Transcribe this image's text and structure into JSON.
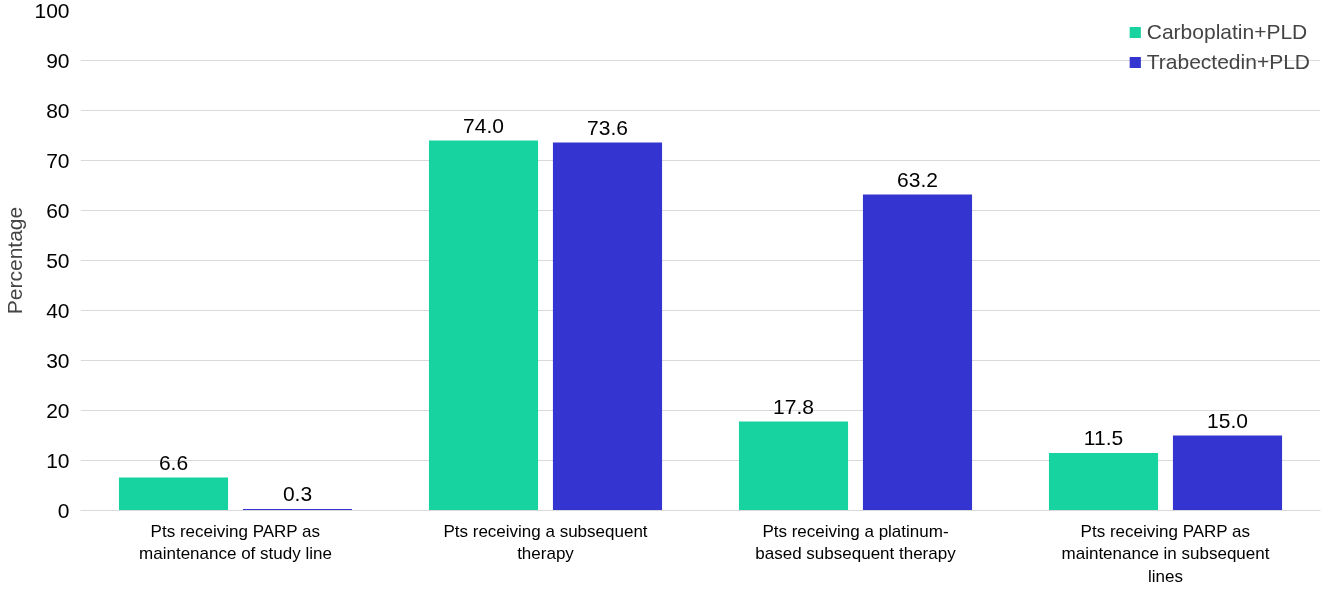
{
  "chart_data": {
    "type": "bar",
    "ylabel": "Percentage",
    "categories": [
      "Pts receiving PARP as maintenance of study line",
      "Pts receiving a subsequent therapy",
      "Pts receiving a platinum-based subsequent therapy",
      "Pts receiving PARP as maintenance in subsequent lines"
    ],
    "series": [
      {
        "name": "Carboplatin+PLD",
        "color": "#16d3a0",
        "values": [
          6.6,
          74.0,
          17.8,
          11.5
        ],
        "value_labels": [
          "6.6",
          "74.0",
          "17.8",
          "11.5"
        ]
      },
      {
        "name": "Trabectedin+PLD",
        "color": "#3434d0",
        "values": [
          0.3,
          73.6,
          63.2,
          15.0
        ],
        "value_labels": [
          "0.3",
          "73.6",
          "63.2",
          "15.0"
        ]
      }
    ],
    "ylim": [
      0,
      100
    ],
    "yticks": [
      0,
      10,
      20,
      30,
      40,
      50,
      60,
      70,
      80,
      90,
      100
    ],
    "grid": "y",
    "legend": "top right"
  }
}
